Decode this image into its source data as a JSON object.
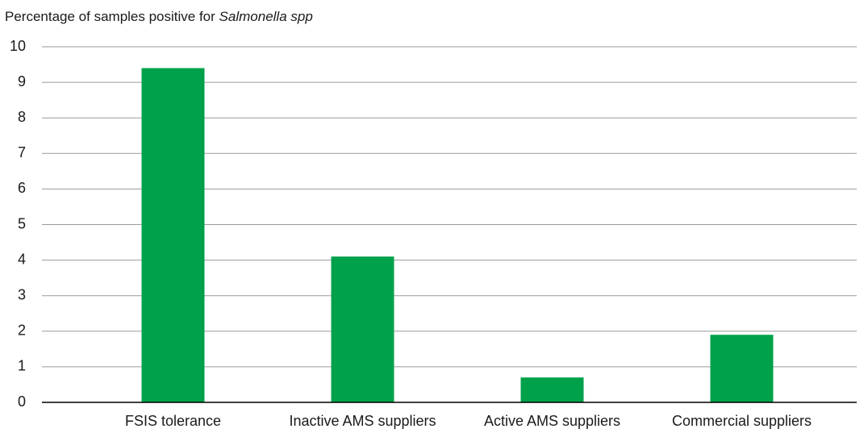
{
  "chart_data": {
    "type": "bar",
    "title": "Percentage of samples positive for",
    "title_italic": "Salmonella spp",
    "categories": [
      "FSIS tolerance",
      "Inactive AMS suppliers",
      "Active AMS suppliers",
      "Commercial suppliers"
    ],
    "values": [
      9.4,
      4.1,
      0.7,
      1.9
    ],
    "color": "#00a14b",
    "ylim": [
      0,
      10
    ],
    "yticks": [
      0,
      1,
      2,
      3,
      4,
      5,
      6,
      7,
      8,
      9,
      10
    ],
    "grid": true
  }
}
